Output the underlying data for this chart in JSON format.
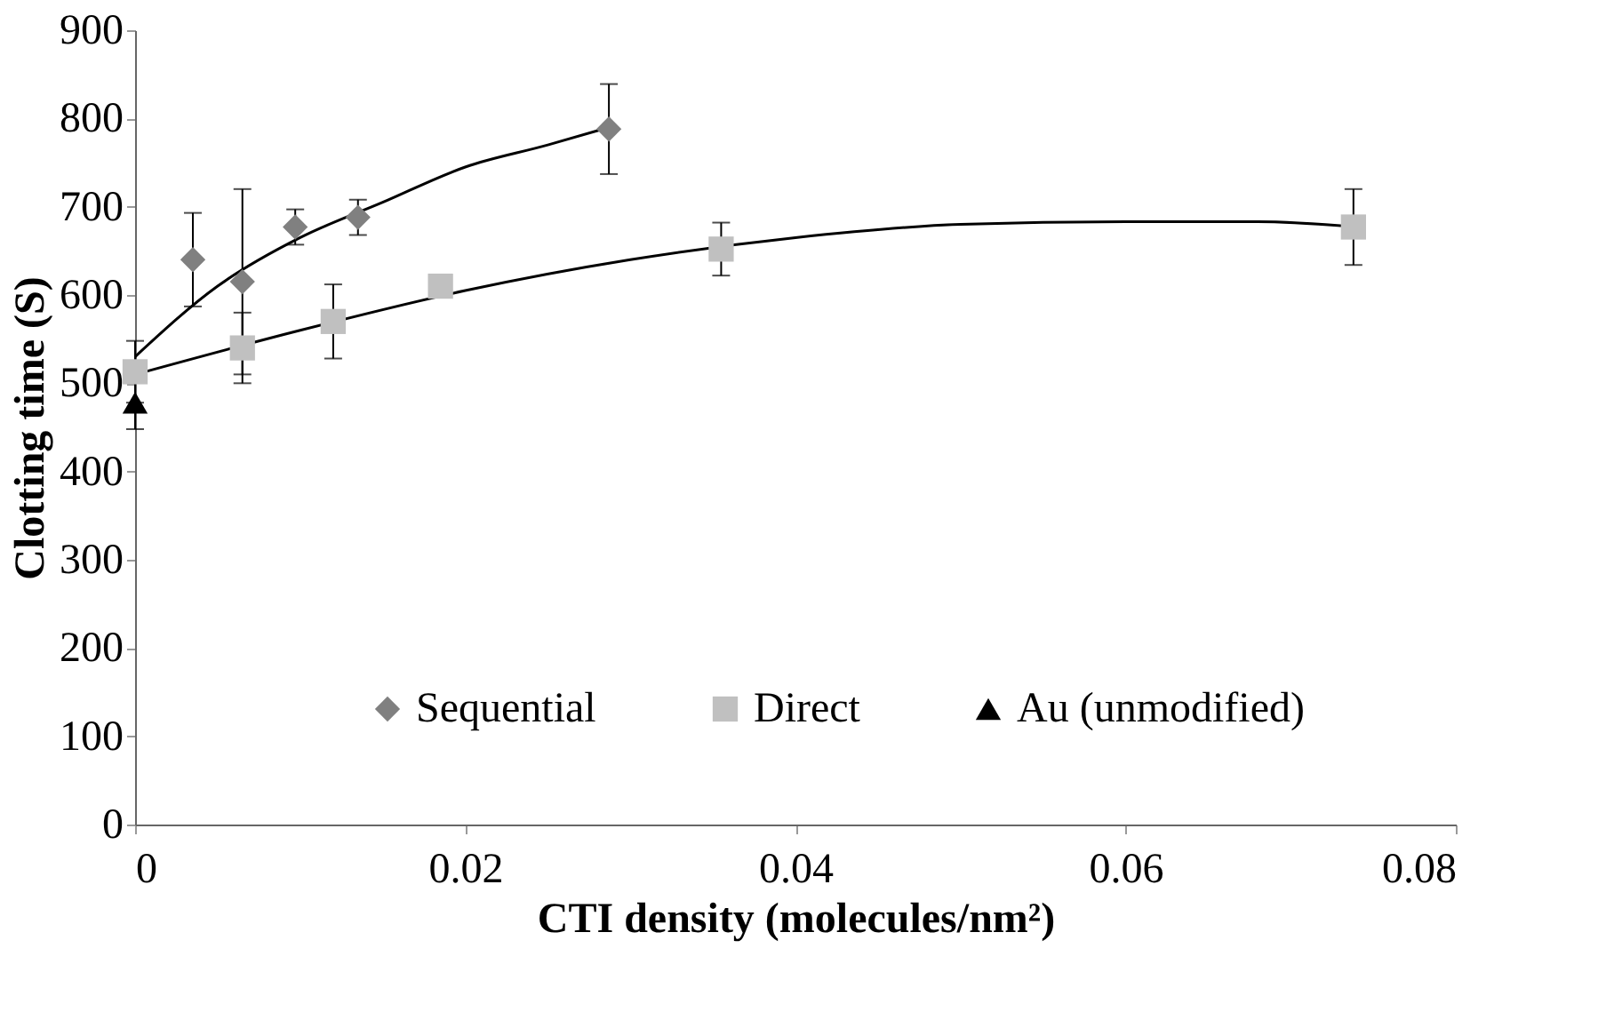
{
  "chart_data": {
    "type": "scatter",
    "xlabel": "CTI density (molecules/nm²)",
    "ylabel": "Clotting time (S)",
    "xlim": [
      0,
      0.08
    ],
    "xticks": [
      0,
      0.02,
      0.04,
      0.06,
      0.08
    ],
    "ylim": [
      0,
      900
    ],
    "yticks": [
      0,
      100,
      200,
      300,
      400,
      500,
      600,
      700,
      800,
      900
    ],
    "grid": false,
    "legend": "bottom",
    "series": [
      {
        "name": "Sequential",
        "marker": "diamond",
        "color": "#808080",
        "x": [
          0.0035,
          0.0065,
          0.0097,
          0.0135,
          0.0287
        ],
        "values": [
          640,
          615,
          677,
          688,
          788
        ],
        "errors": [
          53,
          105,
          20,
          20,
          51
        ]
      },
      {
        "name": "Direct",
        "marker": "square",
        "color": "#c0c0c0",
        "x": [
          0,
          0.0065,
          0.012,
          0.0185,
          0.0355,
          0.0738
        ],
        "values": [
          513,
          540,
          570,
          610,
          652,
          677
        ],
        "errors": [
          35,
          40,
          42,
          null,
          30,
          43
        ]
      },
      {
        "name": "Au (unmodified)",
        "marker": "triangle",
        "color": "#000000",
        "x": [
          0
        ],
        "values": [
          478
        ],
        "errors": [
          30
        ]
      },
      {
        "type": "line",
        "color": "#000000",
        "x": [
          0,
          0.005,
          0.01,
          0.015,
          0.02,
          0.025,
          0.0287
        ],
        "values": [
          530,
          610,
          665,
          705,
          745,
          770,
          790
        ]
      },
      {
        "type": "line",
        "color": "#000000",
        "x": [
          0,
          0.01,
          0.02,
          0.03,
          0.04,
          0.05,
          0.06,
          0.068,
          0.074
        ],
        "values": [
          510,
          560,
          605,
          640,
          665,
          680,
          683,
          683,
          677
        ]
      }
    ]
  }
}
